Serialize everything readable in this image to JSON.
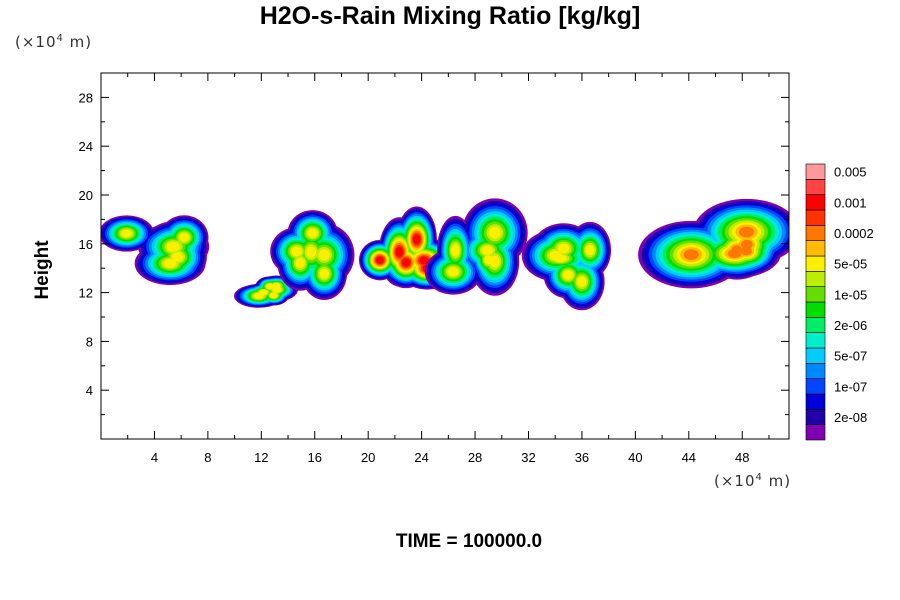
{
  "title": "H2O-s-Rain Mixing Ratio [kg/kg]",
  "y_unit": {
    "prefix": "(×10",
    "exp": "4",
    "suffix": " m)"
  },
  "x_unit": {
    "prefix": "(×10",
    "exp": "4",
    "suffix": " m)"
  },
  "ylabel": "Height",
  "time_label": "TIME = 100000.0",
  "chart_data": {
    "type": "heatmap",
    "title": "H2O-s-Rain Mixing Ratio [kg/kg]",
    "xlabel": "",
    "ylabel": "Height",
    "xlim": [
      0,
      51.5
    ],
    "ylim": [
      0,
      30
    ],
    "x_ticks": [
      4,
      8,
      12,
      16,
      20,
      24,
      28,
      32,
      36,
      40,
      44,
      48
    ],
    "y_ticks": [
      4,
      8,
      12,
      16,
      20,
      24,
      28
    ],
    "x_tick_labels": [
      "4",
      "8",
      "12",
      "16",
      "20",
      "24",
      "28",
      "32",
      "36",
      "40",
      "44",
      "48"
    ],
    "y_tick_labels": [
      "4",
      "8",
      "12",
      "16",
      "20",
      "24",
      "28"
    ],
    "colorbar": {
      "colors": [
        "#7f00b2",
        "#2200a8",
        "#0000dd",
        "#0044ff",
        "#0088ff",
        "#00ccff",
        "#00eecc",
        "#00ee66",
        "#00dd00",
        "#66dd00",
        "#bbee00",
        "#ffee00",
        "#ffbb00",
        "#ff7700",
        "#ff3300",
        "#ff0000",
        "#ff4444",
        "#ff9999"
      ],
      "labels": [
        {
          "text": "2e-08",
          "level": 1
        },
        {
          "text": "1e-07",
          "level": 3
        },
        {
          "text": "5e-07",
          "level": 5
        },
        {
          "text": "2e-06",
          "level": 7
        },
        {
          "text": "1e-05",
          "level": 9
        },
        {
          "text": "5e-05",
          "level": 11
        },
        {
          "text": "0.0002",
          "level": 13
        },
        {
          "text": "0.001",
          "level": 15
        },
        {
          "text": "0.005",
          "level": 17
        }
      ]
    },
    "clusters": [
      {
        "x": [
          0,
          8.5
        ],
        "y": [
          12.5,
          18.8
        ],
        "peak_level": 11
      },
      {
        "x": [
          9.5,
          14.5
        ],
        "y": [
          10.5,
          13.5
        ],
        "peak_level": 11
      },
      {
        "x": [
          12.0,
          18.5
        ],
        "y": [
          11.0,
          19.5
        ],
        "peak_level": 11
      },
      {
        "x": [
          19.0,
          26.0
        ],
        "y": [
          11.0,
          19.0
        ],
        "peak_level": 15
      },
      {
        "x": [
          24.5,
          31.5
        ],
        "y": [
          11.5,
          19.5
        ],
        "peak_level": 11
      },
      {
        "x": [
          32.0,
          40.0
        ],
        "y": [
          11.0,
          17.5
        ],
        "peak_level": 11
      },
      {
        "x": [
          40.5,
          51.5
        ],
        "y": [
          12.0,
          19.5
        ],
        "peak_level": 13
      }
    ]
  }
}
